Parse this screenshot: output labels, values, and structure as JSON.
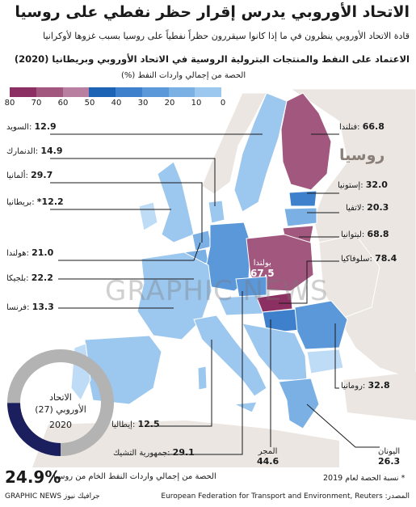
{
  "title": "الاتحاد الأوروبي يدرس إقرار حظر نفطي على روسيا",
  "subtitle_line1": "قادة الاتحاد الأوروبي ينظرون في ما إذا كانوا سيقررون حظراً نفطياً على روسيا بسبب غزوها لأوكرانيا",
  "section_title": "الاعتماد على النفط والمنتجات البترولية الروسية في الاتحاد الأوروبي وبريطانيا (2020)",
  "legend": {
    "title": "الحصة من إجمالي واردات النفط (%)",
    "ticks": [
      "80",
      "70",
      "60",
      "50",
      "40",
      "30",
      "20",
      "10",
      "0"
    ],
    "colors": [
      "#8c2f62",
      "#a2577f",
      "#b97fa0",
      "#1d63b5",
      "#3e80cc",
      "#5b98d9",
      "#7bb0e4",
      "#9cc7ee",
      "#bedcf6"
    ]
  },
  "countries": [
    {
      "name": "السويد",
      "value": "12.9"
    },
    {
      "name": "الدنمارك",
      "value": "14.9"
    },
    {
      "name": "ألمانيا",
      "value": "29.7"
    },
    {
      "name": "بريطانيا",
      "value": "12.2*"
    },
    {
      "name": "هولندا",
      "value": "21.0"
    },
    {
      "name": "بلجيكا",
      "value": "22.2"
    },
    {
      "name": "فرنسا",
      "value": "13.3"
    },
    {
      "name": "فنلندا",
      "value": "66.8"
    },
    {
      "name": "إستونيا",
      "value": "32.0"
    },
    {
      "name": "لاتفيا",
      "value": "20.3"
    },
    {
      "name": "ليتوانيا",
      "value": "68.8"
    },
    {
      "name": "سلوفاكيا",
      "value": "78.4"
    },
    {
      "name": "رومانيا",
      "value": "32.8"
    },
    {
      "name": "إيطاليا",
      "value": "12.5"
    },
    {
      "name": "جمهورية التشيك",
      "value": "29.1"
    },
    {
      "name": "المجر",
      "value": "44.6"
    },
    {
      "name": "اليونان",
      "value": "26.3"
    },
    {
      "name": "بولندا",
      "value": "67.5"
    }
  ],
  "russia_label": "روسيا",
  "watermark": "GRAPHIC NEWS",
  "donut": {
    "line1": "الاتحاد",
    "line2": "الأوروبي (27)",
    "year": "2020",
    "value_pct": 24.9,
    "color_fill": "#1b1f5e",
    "color_rest": "#b3b3b3"
  },
  "eu_share_value": "24.9%",
  "eu_share_text": "الحصة من إجمالي واردات النفط الخام من روسيا",
  "note": "* نسبة الحصة لعام 2019",
  "source": "المصدر: European Federation for Transport and Environment, Reuters",
  "credit": "GRAPHIC NEWS جرافيك نيوز"
}
